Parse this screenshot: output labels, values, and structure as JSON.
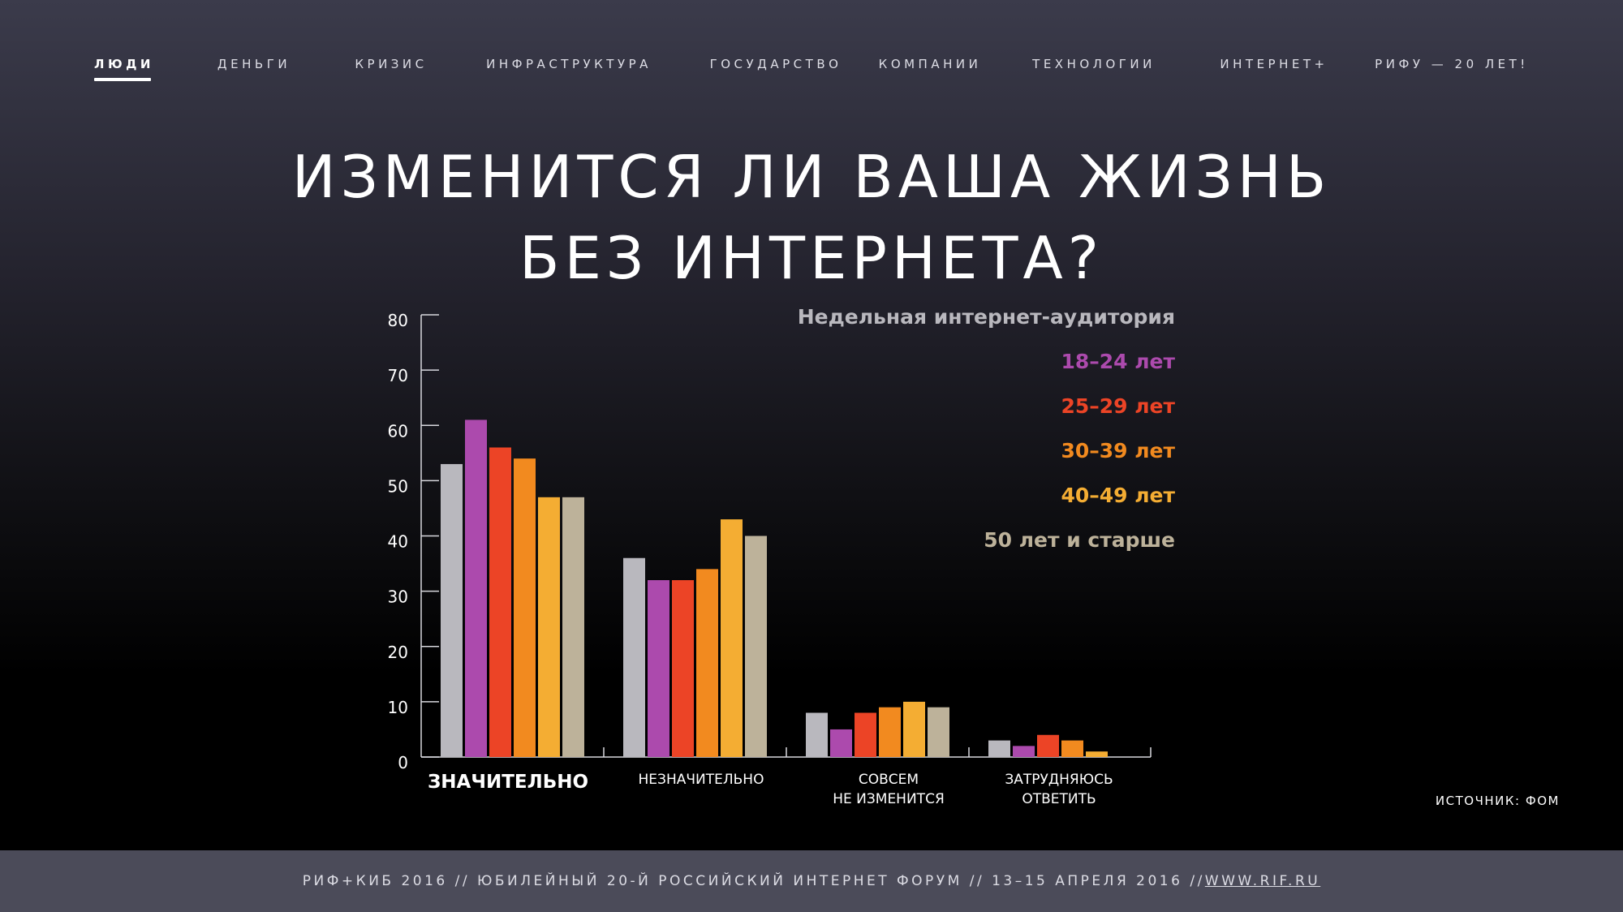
{
  "nav": {
    "items": [
      "ЛЮДИ",
      "ДЕНЬГИ",
      "КРИЗИС",
      "ИНФРАСТРУКТУРА",
      "ГОСУДАРСТВО",
      "КОМПАНИИ",
      "ТЕХНОЛОГИИ",
      "ИНТЕРНЕТ+",
      "РИФУ — 20 ЛЕТ!"
    ],
    "active": "ЛЮДИ"
  },
  "headline": {
    "line1": "ИЗМЕНИТСЯ ЛИ ВАША ЖИЗНЬ",
    "line2": "БЕЗ ИНТЕРНЕТА?"
  },
  "source": "ИСТОЧНИК: ФОМ",
  "footer": {
    "text": "РИФ+КИБ 2016 // ЮБИЛЕЙНЫЙ 20-Й РОССИЙСКИЙ ИНТЕРНЕТ ФОРУМ // 13–15 АПРЕЛЯ 2016 // ",
    "link": "WWW.RIF.RU"
  },
  "chart_data": {
    "type": "bar",
    "categories": [
      [
        "ЗНАЧИТЕЛЬНО"
      ],
      [
        "НЕЗНАЧИТЕЛЬНО"
      ],
      [
        "СОВСЕМ",
        "НЕ ИЗМЕНИТСЯ"
      ],
      [
        "ЗАТРУДНЯЮСЬ",
        "ОТВЕТИТЬ"
      ]
    ],
    "emphasized_category": 0,
    "series": [
      {
        "name": "Недельная интернет-аудитория",
        "color": "#b9b8be",
        "values": [
          53,
          36,
          8,
          3
        ]
      },
      {
        "name": "18–24 лет",
        "color": "#ac4aad",
        "values": [
          61,
          32,
          5,
          2
        ]
      },
      {
        "name": "25–29 лет",
        "color": "#ec4426",
        "values": [
          56,
          32,
          8,
          4
        ]
      },
      {
        "name": "30–39 лет",
        "color": "#f28a1f",
        "values": [
          54,
          34,
          9,
          3
        ]
      },
      {
        "name": "40–49 лет",
        "color": "#f4ad33",
        "values": [
          47,
          43,
          10,
          1
        ]
      },
      {
        "name": "50 лет и старше",
        "color": "#bdb29a",
        "values": [
          47,
          40,
          9,
          0
        ]
      }
    ],
    "ylim": [
      0,
      80
    ],
    "yticks": [
      0,
      10,
      20,
      30,
      40,
      50,
      60,
      70,
      80
    ],
    "legend_placement": "top-right",
    "grid": false
  }
}
